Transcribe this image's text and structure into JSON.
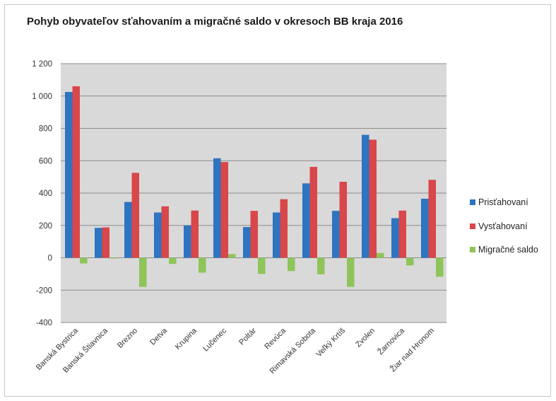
{
  "chart_data": {
    "type": "bar",
    "title": "Pohyb obyvateľov sťahovaním a migračné saldo v okresoch BB kraja 2016",
    "xlabel": "",
    "ylabel": "",
    "ylim": [
      -400,
      1200
    ],
    "yticks": [
      1200,
      1000,
      800,
      600,
      400,
      200,
      0,
      -200,
      -400
    ],
    "ytick_labels": [
      "1 200",
      "1 000",
      "800",
      "600",
      "400",
      "200",
      "0",
      "-200",
      "-400"
    ],
    "grid": true,
    "legend_position": "right",
    "categories": [
      "Banská Bystrica",
      "Banská Štiavnica",
      "Brezno",
      "Detva",
      "Krupina",
      "Lučenec",
      "Poltár",
      "Revúca",
      "Rimavská Sobota",
      "Veľký Krtíš",
      "Zvolen",
      "Žarnovica",
      "Žiar nad Hronom"
    ],
    "series": [
      {
        "name": "Prisťahovaní",
        "color": "#2e74c0",
        "values": [
          1025,
          185,
          345,
          280,
          200,
          615,
          190,
          280,
          460,
          290,
          760,
          245,
          365
        ]
      },
      {
        "name": "Vysťahovaní",
        "color": "#d8474a",
        "values": [
          1060,
          188,
          525,
          318,
          292,
          592,
          290,
          362,
          562,
          470,
          730,
          292,
          482
        ]
      },
      {
        "name": "Migračné saldo",
        "color": "#8fc45a",
        "values": [
          -35,
          -3,
          -180,
          -38,
          -92,
          23,
          -100,
          -82,
          -102,
          -180,
          30,
          -47,
          -117
        ]
      }
    ]
  }
}
